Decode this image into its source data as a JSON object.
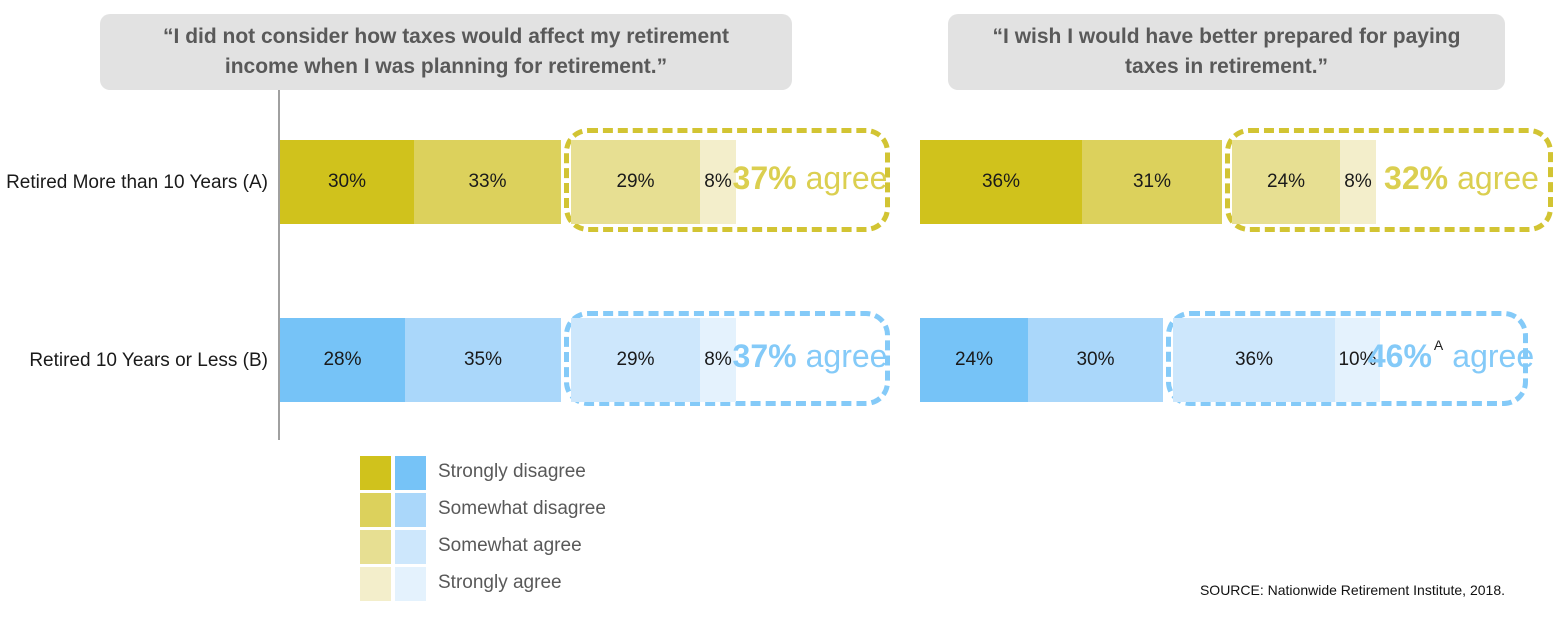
{
  "chart_data": [
    {
      "type": "bar",
      "orientation": "horizontal-stacked",
      "title": "“I did not consider how taxes would affect my retirement income when I was planning for retirement.”",
      "categories": [
        "Retired More than 10 Years (A)",
        "Retired 10 Years or Less (B)"
      ],
      "series": [
        {
          "name": "Strongly disagree",
          "values": [
            30,
            28
          ]
        },
        {
          "name": "Somewhat disagree",
          "values": [
            33,
            35
          ]
        },
        {
          "name": "Somewhat agree",
          "values": [
            29,
            29
          ]
        },
        {
          "name": "Strongly agree",
          "values": [
            8,
            8
          ]
        }
      ],
      "annotations": [
        {
          "pct": "37%",
          "word": "agree",
          "sup": ""
        },
        {
          "pct": "37%",
          "word": "agree",
          "sup": ""
        }
      ],
      "legend_position": "bottom-left",
      "grid": false,
      "xlim": [
        0,
        100
      ]
    },
    {
      "type": "bar",
      "orientation": "horizontal-stacked",
      "title": "“I wish I would have better prepared for paying taxes in retirement.”",
      "categories": [
        "Retired More than 10 Years (A)",
        "Retired 10 Years or Less (B)"
      ],
      "series": [
        {
          "name": "Strongly disagree",
          "values": [
            36,
            24
          ]
        },
        {
          "name": "Somewhat disagree",
          "values": [
            31,
            30
          ]
        },
        {
          "name": "Somewhat agree",
          "values": [
            24,
            36
          ]
        },
        {
          "name": "Strongly agree",
          "values": [
            8,
            10
          ]
        }
      ],
      "annotations": [
        {
          "pct": "32%",
          "word": "agree",
          "sup": ""
        },
        {
          "pct": "46%",
          "word": "agree",
          "sup": "A"
        }
      ],
      "grid": false,
      "xlim": [
        0,
        100
      ]
    }
  ],
  "legend": {
    "items": [
      "Strongly disagree",
      "Somewhat disagree",
      "Somewhat agree",
      "Strongly agree"
    ]
  },
  "source": "SOURCE: Nationwide Retirement Institute, 2018.",
  "colors": {
    "yellow_palette": [
      "#d0c21c",
      "#dcd15c",
      "#e7df92",
      "#f3eecb"
    ],
    "blue_palette": [
      "#76c3f7",
      "#aad7fa",
      "#cde7fc",
      "#e4f2fd"
    ],
    "yellow_dash": "#d2c433",
    "yellow_text": "#dbcf50",
    "blue_dash": "#84caf8",
    "blue_text": "#84caf8",
    "header_bg": "#e2e2e2",
    "header_text": "#595959",
    "axis": "#a0a0a0",
    "bar_label": "#1a1a1a",
    "legend_text": "#595959",
    "source_text": "#111111"
  }
}
